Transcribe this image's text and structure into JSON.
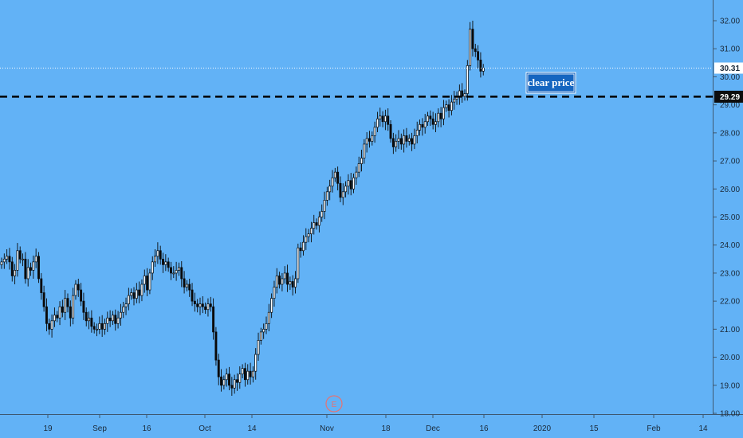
{
  "chart_data": {
    "type": "candlestick",
    "y_axis": {
      "ticks": [
        "18.00",
        "19.00",
        "20.00",
        "21.00",
        "22.00",
        "23.00",
        "24.00",
        "25.00",
        "26.00",
        "27.00",
        "28.00",
        "29.00",
        "30.00",
        "31.00",
        "32.00"
      ],
      "range": [
        17.95,
        32.1
      ]
    },
    "x_axis": {
      "ticks": [
        "19",
        "Sep",
        "16",
        "Oct",
        "14",
        "Nov",
        "18",
        "Dec",
        "16",
        "2020",
        "15",
        "Feb",
        "14"
      ]
    },
    "last_price": {
      "value": 30.31,
      "label": "30.31"
    },
    "support_level": {
      "value": 29.29,
      "label": "29.29"
    },
    "annotation": "clear price",
    "event_marker": "E",
    "candles_close": [
      23.4,
      23.5,
      23.6,
      23.4,
      22.9,
      23.1,
      23.8,
      23.5,
      23.5,
      22.8,
      23.2,
      23.1,
      23.4,
      23.6,
      22.8,
      22.3,
      21.8,
      21.2,
      21.0,
      21.3,
      21.5,
      21.4,
      21.8,
      21.6,
      22.1,
      21.8,
      21.4,
      22.2,
      22.6,
      22.4,
      22.0,
      21.6,
      21.3,
      21.4,
      21.1,
      21.0,
      21.0,
      21.2,
      21.0,
      21.2,
      21.4,
      21.3,
      21.5,
      21.2,
      21.4,
      21.6,
      21.8,
      21.9,
      22.2,
      22.3,
      22.1,
      22.4,
      22.2,
      22.6,
      22.9,
      22.4,
      23.0,
      23.4,
      23.6,
      23.8,
      23.5,
      23.3,
      23.4,
      23.2,
      23.0,
      23.0,
      23.1,
      23.2,
      22.8,
      22.5,
      22.6,
      22.4,
      22.0,
      21.9,
      21.8,
      21.9,
      21.8,
      21.7,
      21.9,
      21.8,
      20.9,
      19.9,
      19.3,
      19.0,
      19.2,
      19.4,
      19.0,
      18.9,
      19.2,
      19.1,
      19.4,
      19.6,
      19.2,
      19.5,
      19.3,
      19.5,
      20.1,
      20.6,
      20.9,
      21.0,
      21.2,
      21.6,
      22.1,
      22.5,
      22.9,
      22.6,
      22.8,
      23.0,
      22.6,
      22.7,
      22.5,
      22.8,
      23.9,
      23.8,
      24.1,
      24.3,
      24.4,
      24.6,
      24.8,
      24.7,
      25.0,
      25.2,
      25.6,
      25.9,
      26.1,
      26.4,
      26.6,
      26.2,
      25.7,
      25.9,
      26.1,
      26.3,
      26.0,
      26.4,
      26.6,
      26.9,
      27.1,
      27.6,
      27.8,
      27.7,
      27.9,
      28.2,
      28.5,
      28.6,
      28.4,
      28.6,
      28.3,
      27.8,
      27.5,
      27.7,
      27.8,
      27.6,
      27.9,
      27.7,
      27.8,
      27.6,
      27.9,
      28.1,
      28.3,
      28.2,
      28.4,
      28.6,
      28.5,
      28.3,
      28.4,
      28.7,
      28.5,
      28.9,
      29.0,
      28.8,
      29.1,
      29.2,
      29.3,
      29.5,
      29.3,
      29.4,
      30.4,
      31.7,
      31.0,
      30.9,
      30.6,
      30.2,
      30.31
    ]
  }
}
